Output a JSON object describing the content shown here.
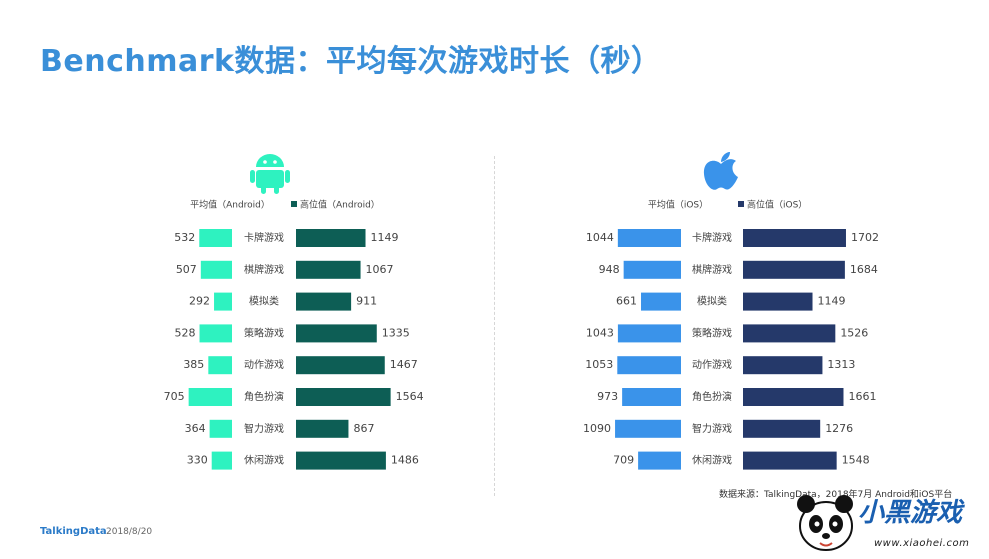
{
  "title": "Benchmark数据：平均每次游戏时长（秒）",
  "footer": {
    "brand": "TalkingData",
    "date": "2018/8/20"
  },
  "source_note": "数据来源：TalkingData，2018年7月 Android和iOS平台",
  "watermark": {
    "text": "小黑游戏",
    "url": "www.xiaohei.com"
  },
  "colors": {
    "android_avg": "#2ef2c0",
    "android_median": "#0d5e55",
    "ios_avg": "#3a93ea",
    "ios_median": "#25396a",
    "title": "#3a8fd8"
  },
  "chart_data": [
    {
      "type": "bar",
      "platform_icon": "android-icon",
      "categories": [
        "卡牌游戏",
        "棋牌游戏",
        "模拟类",
        "策略游戏",
        "动作游戏",
        "角色扮演",
        "智力游戏",
        "休闲游戏"
      ],
      "series": [
        {
          "name": "平均值（Android）",
          "values": [
            532,
            507,
            292,
            528,
            385,
            705,
            364,
            330
          ]
        },
        {
          "name": "高位值（Android）",
          "values": [
            1149,
            1067,
            911,
            1335,
            1467,
            1564,
            867,
            1486
          ]
        }
      ]
    },
    {
      "type": "bar",
      "platform_icon": "apple-icon",
      "categories": [
        "卡牌游戏",
        "棋牌游戏",
        "模拟类",
        "策略游戏",
        "动作游戏",
        "角色扮演",
        "智力游戏",
        "休闲游戏"
      ],
      "series": [
        {
          "name": "平均值（iOS）",
          "values": [
            1044,
            948,
            661,
            1043,
            1053,
            973,
            1090,
            709
          ]
        },
        {
          "name": "高位值（iOS）",
          "values": [
            1702,
            1684,
            1149,
            1526,
            1313,
            1661,
            1276,
            1548
          ]
        }
      ]
    }
  ]
}
